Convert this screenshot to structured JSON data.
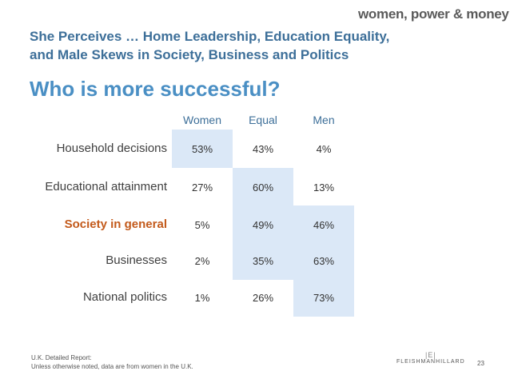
{
  "logo": "women, power & money",
  "subtitle_line1": "She Perceives … Home Leadership, Education Equality,",
  "subtitle_line2": "and Male Skews in Society, Business and Politics",
  "chart_data": {
    "type": "table",
    "title": "Who is more successful?",
    "columns": [
      "Women",
      "Equal",
      "Men"
    ],
    "rows": [
      {
        "label": "Household decisions",
        "values": [
          "53%",
          "43%",
          "4%"
        ],
        "highlight": [
          true,
          false,
          false
        ]
      },
      {
        "label": "Educational attainment",
        "values": [
          "27%",
          "60%",
          "13%"
        ],
        "highlight": [
          false,
          true,
          false
        ]
      },
      {
        "label": "Society in general",
        "values": [
          "5%",
          "49%",
          "46%"
        ],
        "highlight": [
          false,
          true,
          true
        ]
      },
      {
        "label": "Businesses",
        "values": [
          "2%",
          "35%",
          "63%"
        ],
        "highlight": [
          false,
          true,
          true
        ]
      },
      {
        "label": "National politics",
        "values": [
          "1%",
          "26%",
          "73%"
        ],
        "highlight": [
          false,
          false,
          true
        ]
      }
    ],
    "highlighted_row": 2,
    "highlight_color": "#dbe8f7",
    "label_highlight_color": "#c35a1b"
  },
  "footer_line1": "U.K. Detailed Report:",
  "footer_line2": "Unless otherwise noted, data are from women in the U.K.",
  "fh_mark": "|E|",
  "fh_name": "FLEISHMANHILLARD",
  "page_number": "23"
}
